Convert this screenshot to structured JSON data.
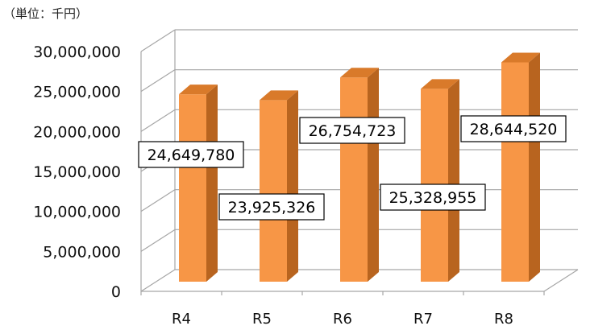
{
  "chart_data": {
    "type": "bar",
    "unit_label": "（単位：千円）",
    "categories": [
      "R4",
      "R5",
      "R6",
      "R7",
      "R8"
    ],
    "values": [
      24649780,
      23925326,
      26754723,
      25328955,
      28644520
    ],
    "data_labels": [
      "24,649,780",
      "23,925,326",
      "26,754,723",
      "25,328,955",
      "28,644,520"
    ],
    "ylim": [
      0,
      30000000
    ],
    "yticks": [
      0,
      5000000,
      10000000,
      15000000,
      20000000,
      25000000,
      30000000
    ],
    "ytick_labels": [
      "0",
      "5,000,000",
      "10,000,000",
      "15,000,000",
      "20,000,000",
      "25,000,000",
      "30,000,000"
    ],
    "title": "",
    "xlabel": "",
    "ylabel": "",
    "grid": true,
    "bar_color": "#F79646",
    "bar_top_color": "#D97A2A",
    "bar_side_color": "#B8641F"
  }
}
